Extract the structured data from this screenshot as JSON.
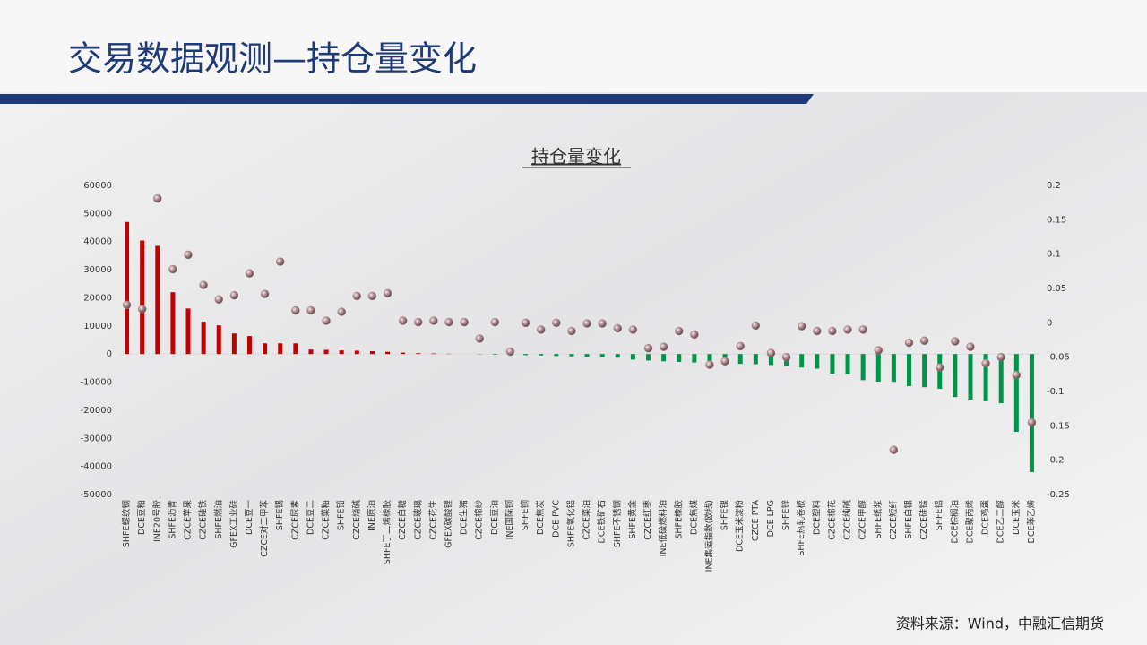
{
  "page_title": "交易数据观测—持仓量变化",
  "source": "资料来源：Wind，中融汇信期货",
  "chart_data": {
    "type": "bar",
    "title": "持仓量变化",
    "categories": [
      "SHFE螺纹钢",
      "DCE豆粕",
      "INE20号胶",
      "SHFE沥青",
      "CZCE苹果",
      "CZCE硅铁",
      "SHFE燃油",
      "GFEX工业硅",
      "DCE豆一",
      "CZCE对二甲苯",
      "SHFE锡",
      "CZCE尿素",
      "DCE豆二",
      "CZCE菜粕",
      "SHFE铅",
      "CZCE烧碱",
      "INE原油",
      "SHFE丁二烯橡胶",
      "CZCE白糖",
      "CZCE玻璃",
      "CZCE花生",
      "GFEX碳酸锂",
      "DCE生猪",
      "CZCE棉纱",
      "DCE豆油",
      "INE国际铜",
      "SHFE铜",
      "DCE焦炭",
      "DCE PVC",
      "SHFE氧化铝",
      "CZCE菜油",
      "DCE铁矿石",
      "SHFE不锈钢",
      "SHFE黄金",
      "CZCE红枣",
      "INE低硫燃料油",
      "SHFE橡胶",
      "DCE焦煤",
      "INE集运指数(欧线)",
      "SHFE银",
      "DCE玉米淀粉",
      "CZCE PTA",
      "DCE LPG",
      "SHFE锌",
      "SHFE热轧卷板",
      "DCE塑料",
      "CZCE棉花",
      "CZCE纯碱",
      "CZCE甲醇",
      "SHFE纸浆",
      "CZCE短纤",
      "SHFE白银",
      "CZCE硅锰",
      "SHFE铝",
      "DCE棕榈油",
      "DCE聚丙烯",
      "DCE鸡蛋",
      "DCE乙二醇",
      "DCE玉米",
      "DCE苯乙烯"
    ],
    "series": [
      {
        "positive_color": "#c00000",
        "negative_color": "#00934a",
        "values": [
          47000,
          40400,
          38500,
          22000,
          16200,
          11500,
          10200,
          7300,
          6400,
          3800,
          3800,
          3800,
          1600,
          1500,
          1300,
          1200,
          1000,
          800,
          500,
          300,
          200,
          100,
          0,
          -100,
          -200,
          -300,
          -400,
          -500,
          -700,
          -800,
          -1000,
          -1100,
          -1300,
          -2000,
          -2300,
          -2600,
          -2800,
          -3000,
          -3200,
          -3400,
          -3500,
          -3600,
          -3900,
          -4200,
          -4800,
          -5200,
          -7000,
          -7300,
          -9300,
          -9800,
          -9900,
          -11400,
          -11800,
          -12400,
          -15300,
          -16200,
          -16800,
          -17500,
          -27700,
          -42000
        ]
      },
      {
        "type": "scatter",
        "axis": "y2",
        "color": "#a88489",
        "values": [
          0.026,
          0.02,
          0.181,
          0.078,
          0.099,
          0.055,
          0.034,
          0.04,
          0.072,
          0.042,
          0.089,
          0.018,
          0.018,
          0.003,
          0.016,
          0.039,
          0.039,
          0.043,
          0.003,
          0.001,
          0.003,
          0.001,
          0.001,
          -0.023,
          0.001,
          -0.042,
          0,
          -0.01,
          0,
          -0.012,
          -0.001,
          -0.001,
          -0.008,
          -0.01,
          -0.037,
          -0.035,
          -0.012,
          -0.017,
          -0.061,
          -0.056,
          -0.034,
          -0.004,
          -0.044,
          -0.05,
          -0.005,
          -0.012,
          -0.012,
          -0.01,
          -0.01,
          -0.04,
          -0.185,
          -0.029,
          -0.026,
          -0.065,
          -0.027,
          -0.035,
          -0.059,
          -0.05,
          -0.076,
          -0.145
        ]
      }
    ],
    "ylim": [
      -50000,
      60000
    ],
    "yticks": [
      60000,
      50000,
      40000,
      30000,
      20000,
      10000,
      0,
      -10000,
      -20000,
      -30000,
      -40000,
      -50000
    ],
    "y2lim": [
      -0.25,
      0.2
    ],
    "y2ticks": [
      0.2,
      0.15,
      0.1,
      0.05,
      0,
      -0.05,
      -0.1,
      -0.15,
      -0.2,
      -0.25
    ]
  }
}
